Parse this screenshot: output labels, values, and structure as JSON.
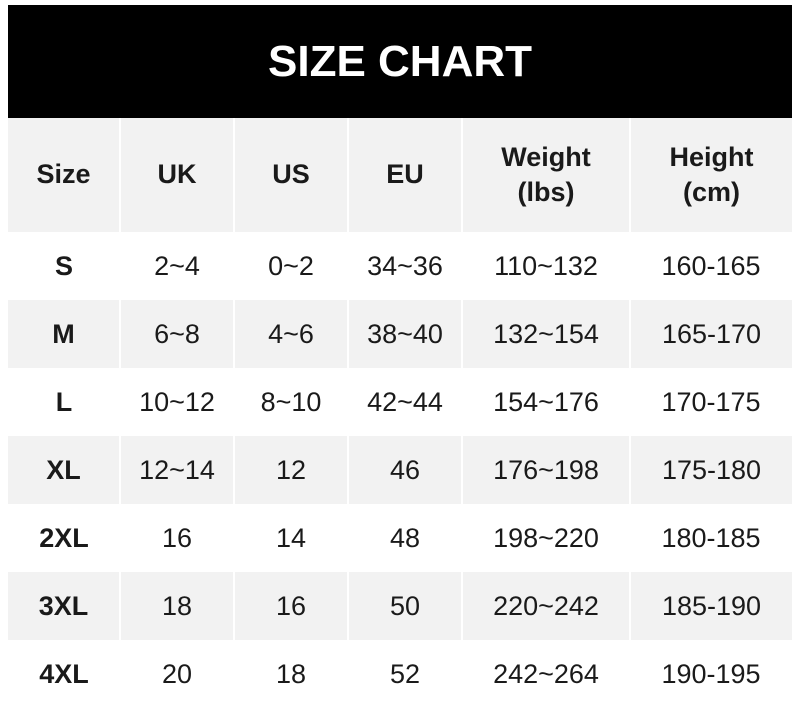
{
  "title": "SIZE CHART",
  "headers": [
    "Size",
    "UK",
    "US",
    "EU",
    "Weight\n(lbs)",
    "Height\n(cm)"
  ],
  "rows": [
    [
      "S",
      "2~4",
      "0~2",
      "34~36",
      "110~132",
      "160-165"
    ],
    [
      "M",
      "6~8",
      "4~6",
      "38~40",
      "132~154",
      "165-170"
    ],
    [
      "L",
      "10~12",
      "8~10",
      "42~44",
      "154~176",
      "170-175"
    ],
    [
      "XL",
      "12~14",
      "12",
      "46",
      "176~198",
      "175-180"
    ],
    [
      "2XL",
      "16",
      "14",
      "48",
      "198~220",
      "180-185"
    ],
    [
      "3XL",
      "18",
      "16",
      "50",
      "220~242",
      "185-190"
    ],
    [
      "4XL",
      "20",
      "18",
      "52",
      "242~264",
      "190-195"
    ]
  ]
}
